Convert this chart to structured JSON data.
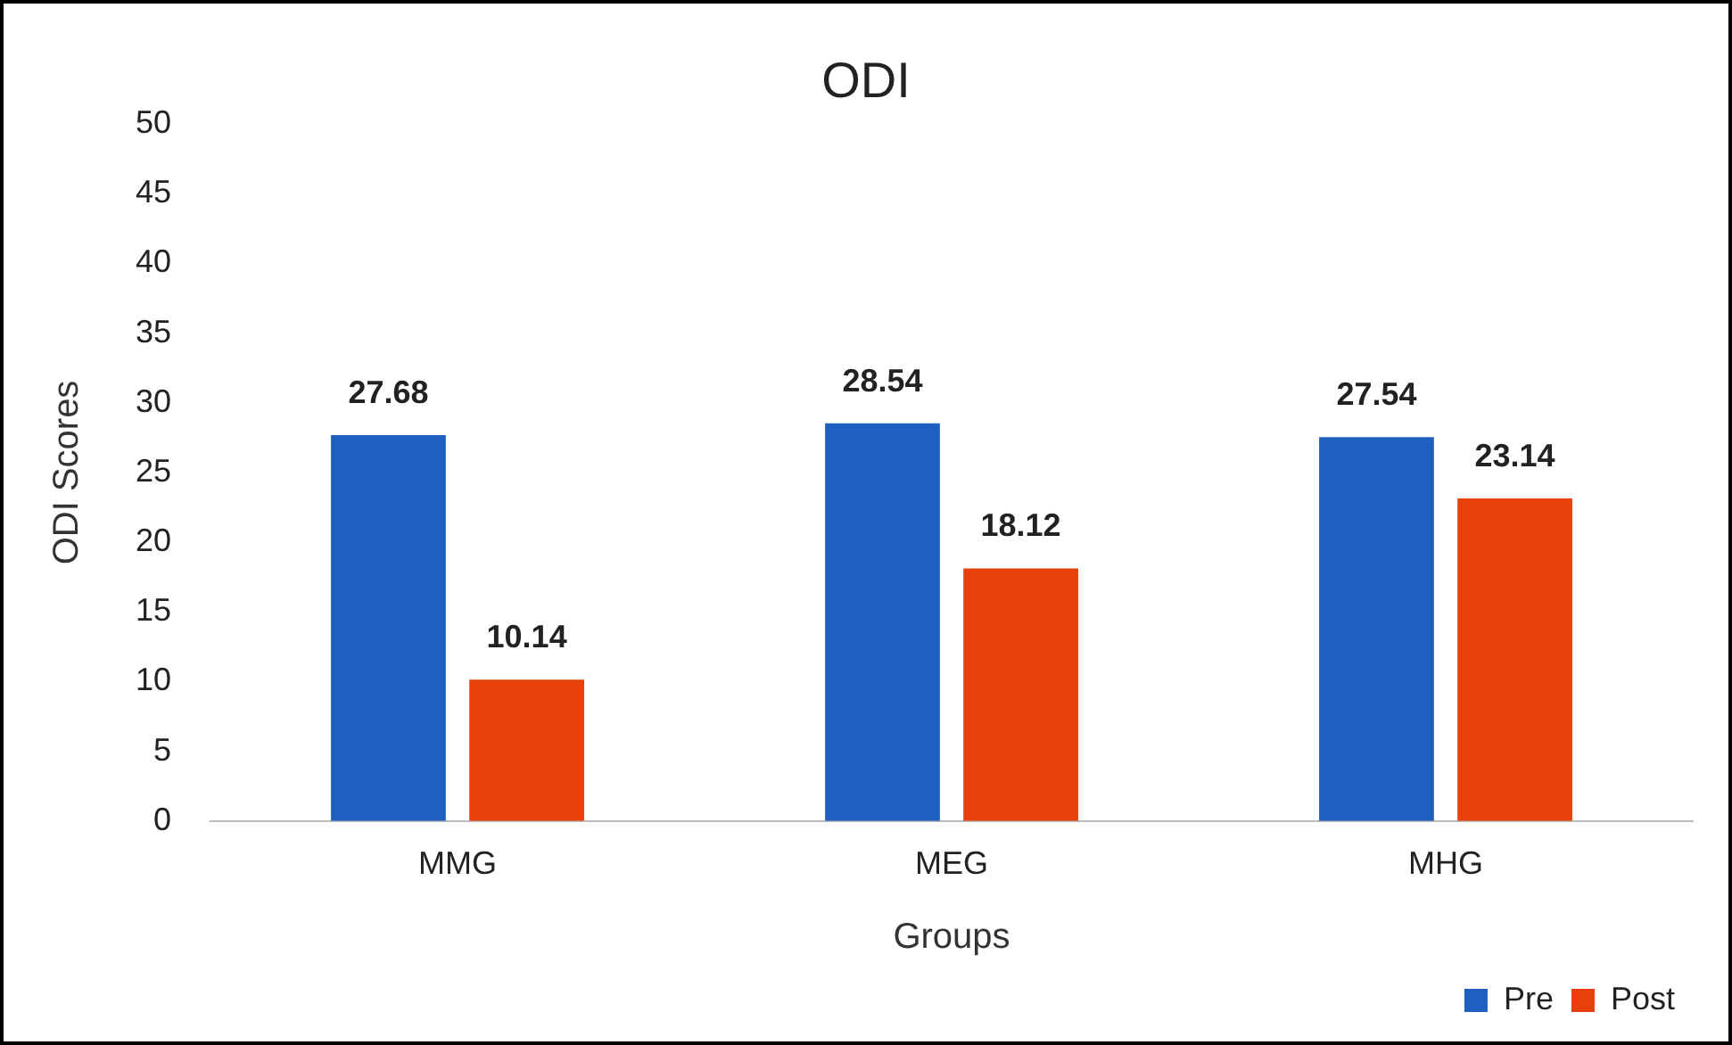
{
  "chart_data": {
    "type": "bar",
    "title": "ODI",
    "xlabel": "Groups",
    "ylabel": "ODI Scores",
    "categories": [
      "MMG",
      "MEG",
      "MHG"
    ],
    "series": [
      {
        "name": "Pre",
        "color": "#1f5fbf",
        "values": [
          27.68,
          28.54,
          27.54
        ]
      },
      {
        "name": "Post",
        "color": "#e8400c",
        "values": [
          10.14,
          18.12,
          23.14
        ]
      }
    ],
    "ylim": [
      0,
      50
    ],
    "yticks": [
      0,
      5,
      10,
      15,
      20,
      25,
      30,
      35,
      40,
      45,
      50
    ],
    "data_labels": true,
    "grid": false,
    "legend": "bottom right"
  }
}
